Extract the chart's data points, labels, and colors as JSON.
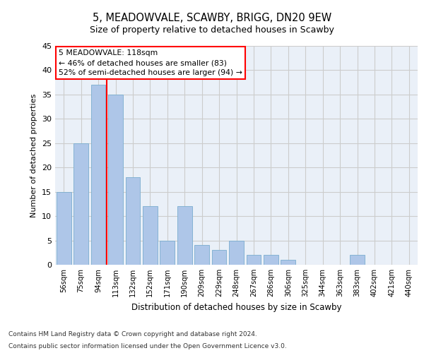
{
  "title": "5, MEADOWVALE, SCAWBY, BRIGG, DN20 9EW",
  "subtitle": "Size of property relative to detached houses in Scawby",
  "xlabel": "Distribution of detached houses by size in Scawby",
  "ylabel": "Number of detached properties",
  "categories": [
    "56sqm",
    "75sqm",
    "94sqm",
    "113sqm",
    "132sqm",
    "152sqm",
    "171sqm",
    "190sqm",
    "209sqm",
    "229sqm",
    "248sqm",
    "267sqm",
    "286sqm",
    "306sqm",
    "325sqm",
    "344sqm",
    "363sqm",
    "383sqm",
    "402sqm",
    "421sqm",
    "440sqm"
  ],
  "values": [
    15,
    25,
    37,
    35,
    18,
    12,
    5,
    12,
    4,
    3,
    5,
    2,
    2,
    1,
    0,
    0,
    0,
    2,
    0,
    0,
    0
  ],
  "bar_color": "#aec6e8",
  "bar_edge_color": "#7aadcf",
  "red_line_x": 2.5,
  "annotation_text_line1": "5 MEADOWVALE: 118sqm",
  "annotation_text_line2": "← 46% of detached houses are smaller (83)",
  "annotation_text_line3": "52% of semi-detached houses are larger (94) →",
  "ylim": [
    0,
    45
  ],
  "yticks": [
    0,
    5,
    10,
    15,
    20,
    25,
    30,
    35,
    40,
    45
  ],
  "grid_color": "#cccccc",
  "background_color": "#eaf0f8",
  "footnote1": "Contains HM Land Registry data © Crown copyright and database right 2024.",
  "footnote2": "Contains public sector information licensed under the Open Government Licence v3.0."
}
